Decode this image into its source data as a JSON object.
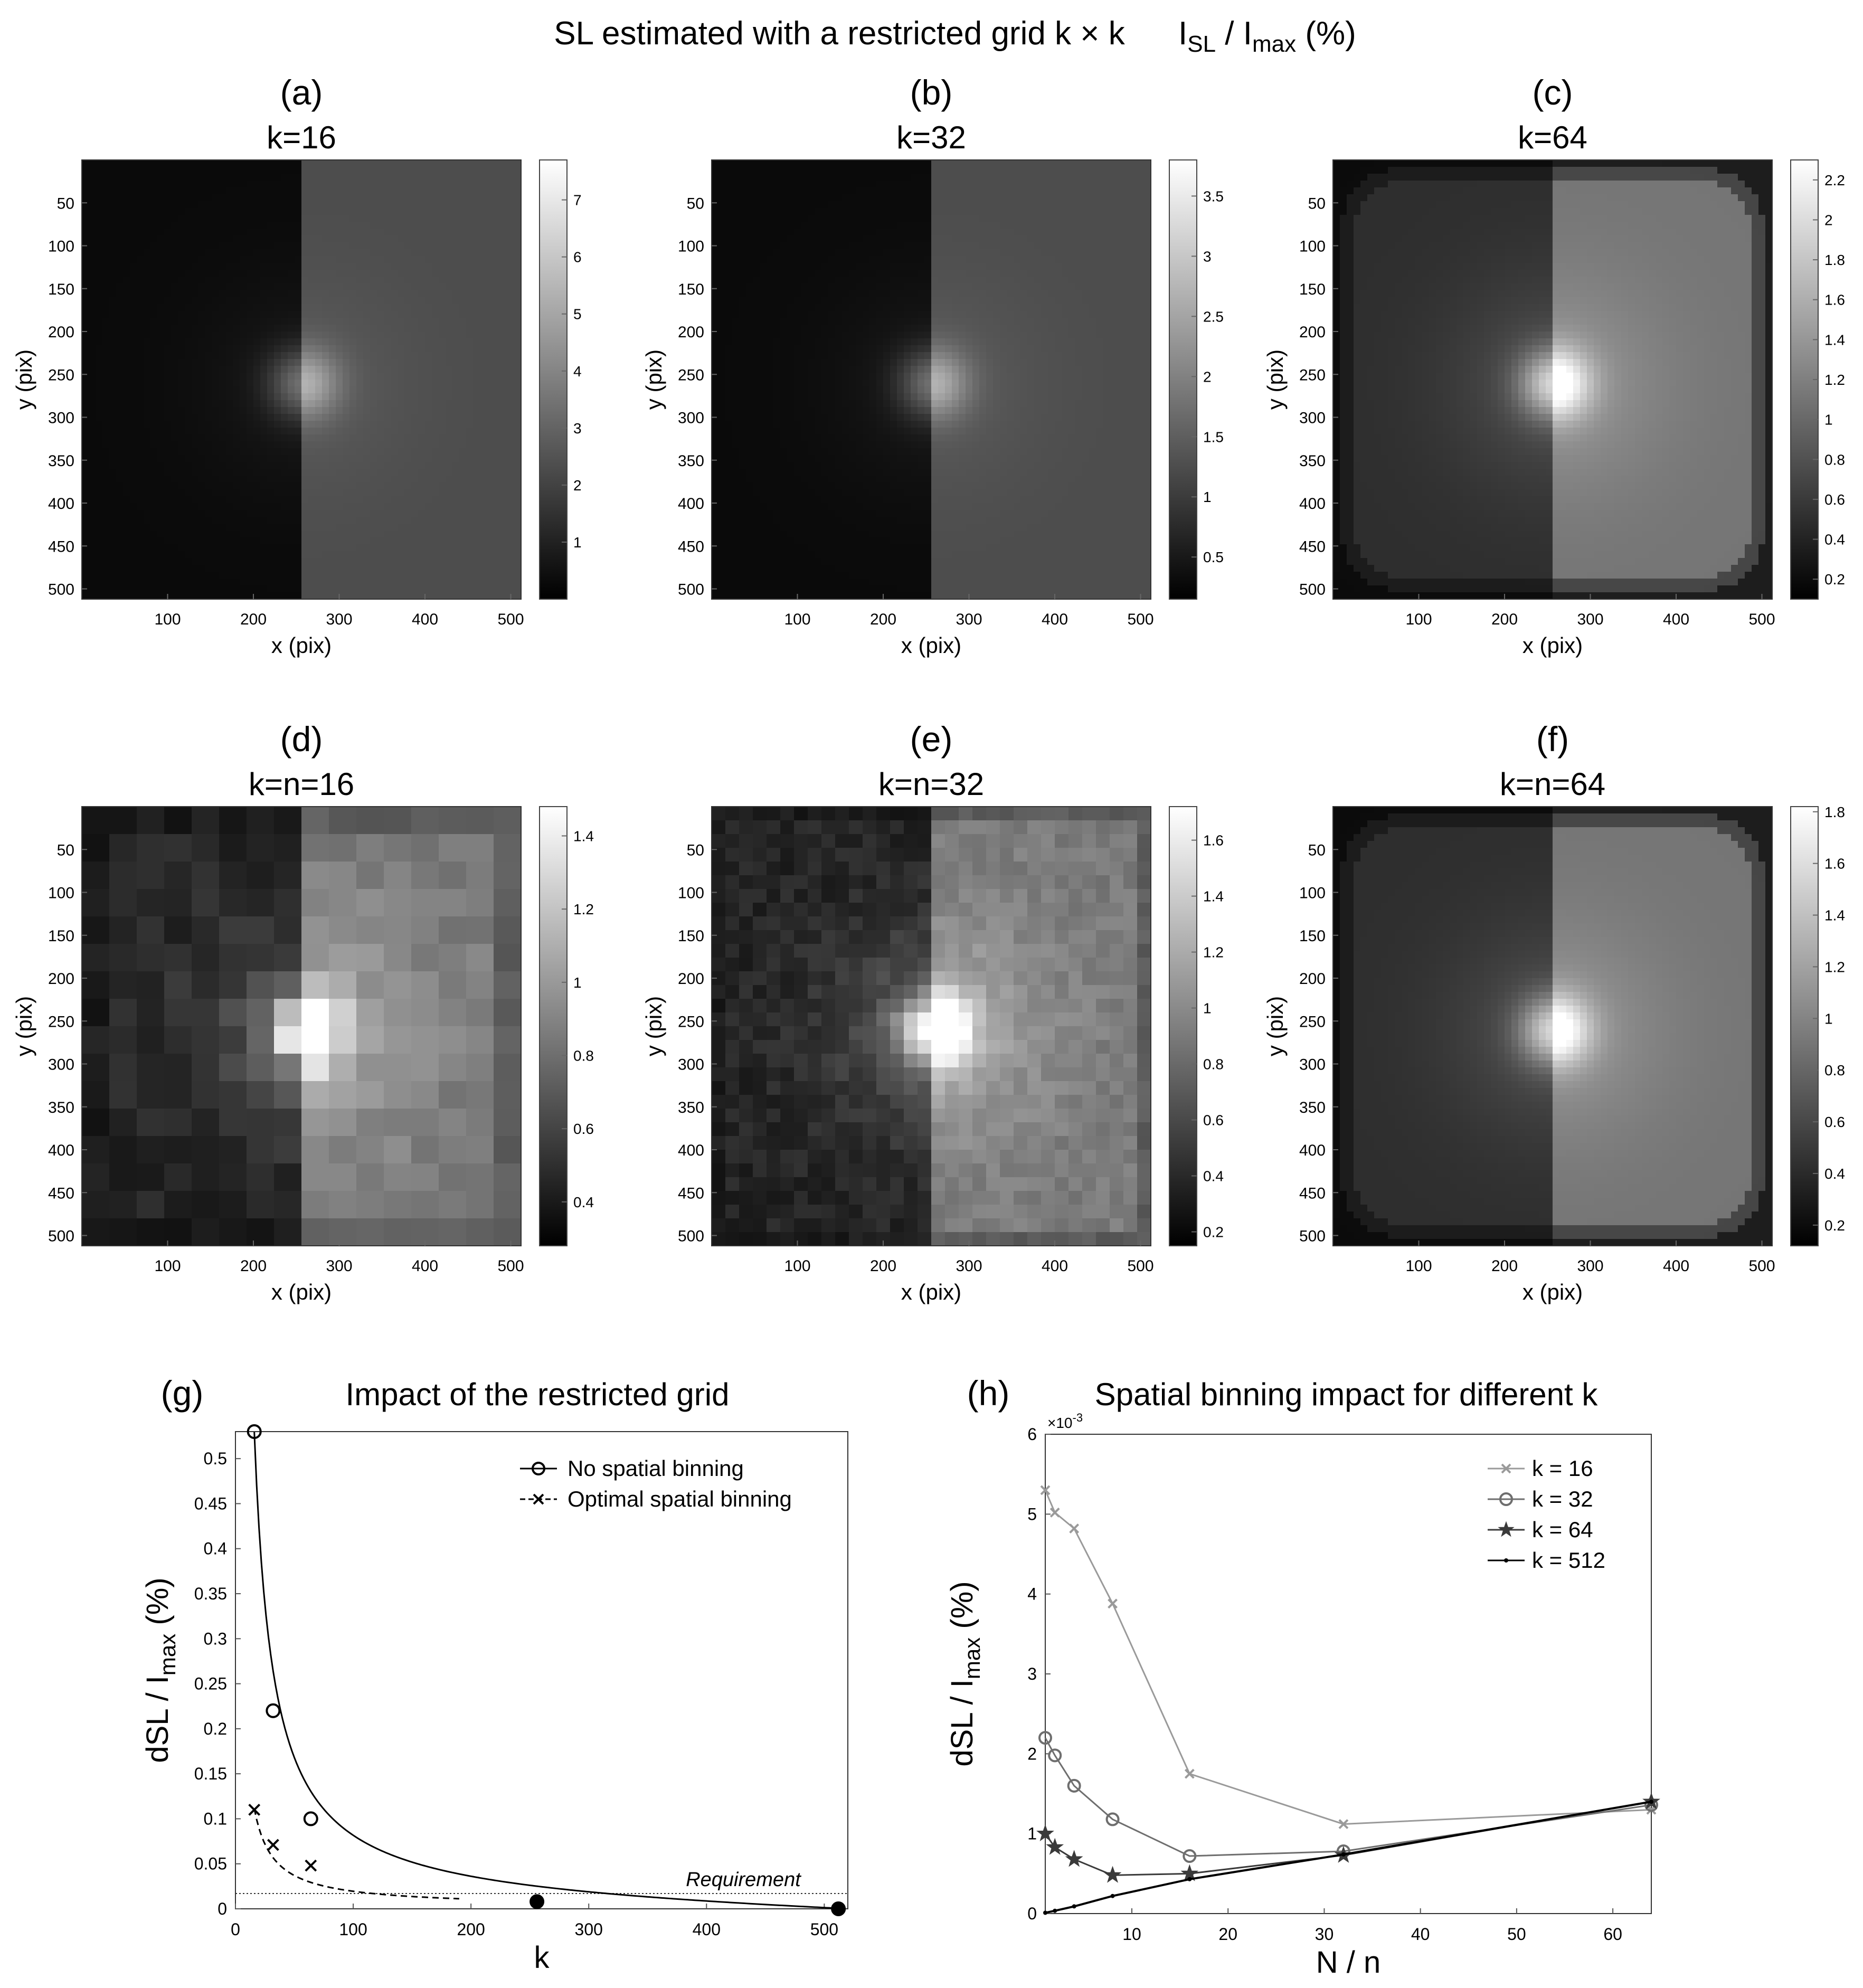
{
  "title": {
    "left": "SL estimated with a restricted grid k × k",
    "right_main": "I",
    "right_sub1": "SL",
    "right_mid": " / I",
    "right_sub2": "max",
    "right_end": " (%)"
  },
  "colors": {
    "line_main": "#000000",
    "k16": "#9a9a9a",
    "k32": "#6e6e6e",
    "k64": "#3a3a3a",
    "k512": "#000000"
  },
  "chart_data": [
    {
      "panel": "(a)",
      "type": "heatmap",
      "title": "k=16",
      "xlabel": "x (pix)",
      "ylabel": "y (pix)",
      "xticks": [
        100,
        200,
        300,
        400,
        500
      ],
      "yticks": [
        50,
        100,
        150,
        200,
        250,
        300,
        350,
        400,
        450,
        500
      ],
      "colorbar_ticks": [
        1,
        2,
        3,
        4,
        5,
        6,
        7
      ],
      "colorbar_range": [
        0,
        7.7
      ],
      "grid_cells": 64,
      "pattern": "spots",
      "hot_spot": [
        260,
        260
      ]
    },
    {
      "panel": "(b)",
      "type": "heatmap",
      "title": "k=32",
      "xlabel": "x (pix)",
      "ylabel": "y (pix)",
      "xticks": [
        100,
        200,
        300,
        400,
        500
      ],
      "yticks": [
        50,
        100,
        150,
        200,
        250,
        300,
        350,
        400,
        450,
        500
      ],
      "colorbar_ticks": [
        0.5,
        1,
        1.5,
        2,
        2.5,
        3,
        3.5
      ],
      "colorbar_range": [
        0.15,
        3.8
      ],
      "grid_cells": 64,
      "pattern": "spots",
      "hot_spot": [
        260,
        260
      ]
    },
    {
      "panel": "(c)",
      "type": "heatmap",
      "title": "k=64",
      "xlabel": "x (pix)",
      "ylabel": "y (pix)",
      "xticks": [
        100,
        200,
        300,
        400,
        500
      ],
      "yticks": [
        50,
        100,
        150,
        200,
        250,
        300,
        350,
        400,
        450,
        500
      ],
      "colorbar_ticks": [
        0.2,
        0.4,
        0.6,
        0.8,
        1,
        1.2,
        1.4,
        1.6,
        1.8,
        2,
        2.2
      ],
      "colorbar_range": [
        0.1,
        2.3
      ],
      "grid_cells": 64,
      "pattern": "smooth",
      "hot_spot": [
        260,
        260
      ]
    },
    {
      "panel": "(d)",
      "type": "heatmap",
      "title": "k=n=16",
      "xlabel": "x (pix)",
      "ylabel": "y (pix)",
      "xticks": [
        100,
        200,
        300,
        400,
        500
      ],
      "yticks": [
        50,
        100,
        150,
        200,
        250,
        300,
        350,
        400,
        450,
        500
      ],
      "colorbar_ticks": [
        0.4,
        0.6,
        0.8,
        1,
        1.2,
        1.4
      ],
      "colorbar_range": [
        0.28,
        1.48
      ],
      "grid_cells": 16,
      "pattern": "blocks",
      "hot_spot": [
        260,
        260
      ]
    },
    {
      "panel": "(e)",
      "type": "heatmap",
      "title": "k=n=32",
      "xlabel": "x (pix)",
      "ylabel": "y (pix)",
      "xticks": [
        100,
        200,
        300,
        400,
        500
      ],
      "yticks": [
        50,
        100,
        150,
        200,
        250,
        300,
        350,
        400,
        450,
        500
      ],
      "colorbar_ticks": [
        0.2,
        0.4,
        0.6,
        0.8,
        1,
        1.2,
        1.4,
        1.6
      ],
      "colorbar_range": [
        0.15,
        1.72
      ],
      "grid_cells": 32,
      "pattern": "blocks",
      "hot_spot": [
        260,
        260
      ]
    },
    {
      "panel": "(f)",
      "type": "heatmap",
      "title": "k=n=64",
      "xlabel": "x (pix)",
      "ylabel": "y (pix)",
      "xticks": [
        100,
        200,
        300,
        400,
        500
      ],
      "yticks": [
        50,
        100,
        150,
        200,
        250,
        300,
        350,
        400,
        450,
        500
      ],
      "colorbar_ticks": [
        0.2,
        0.4,
        0.6,
        0.8,
        1,
        1.2,
        1.4,
        1.6,
        1.8
      ],
      "colorbar_range": [
        0.12,
        1.82
      ],
      "grid_cells": 64,
      "pattern": "smooth",
      "hot_spot": [
        260,
        260
      ]
    },
    {
      "panel": "(g)",
      "type": "line",
      "title": "Impact of the restricted grid",
      "xlabel": "k",
      "ylabel_main": "dSL / I",
      "ylabel_sub": "max",
      "ylabel_end": " (%)",
      "xlim": [
        0,
        520
      ],
      "ylim": [
        0,
        0.53
      ],
      "xticks": [
        0,
        100,
        200,
        300,
        400,
        500
      ],
      "yticks": [
        0,
        0.05,
        0.1,
        0.15,
        0.2,
        0.25,
        0.3,
        0.35,
        0.4,
        0.45,
        0.5
      ],
      "series": [
        {
          "name": "No spatial binning",
          "marker": "o",
          "style": "solid",
          "x": [
            16,
            32,
            64,
            256,
            512
          ],
          "y": [
            0.53,
            0.22,
            0.1,
            0.008,
            0.0
          ],
          "curve_model": "power",
          "filled_points": [
            256,
            512
          ]
        },
        {
          "name": "Optimal spatial binning",
          "marker": "x",
          "style": "dashed",
          "x": [
            16,
            32,
            64
          ],
          "y": [
            0.11,
            0.071,
            0.048
          ]
        }
      ],
      "hline": {
        "y": 0.017,
        "label": "Requirement"
      }
    },
    {
      "panel": "(h)",
      "type": "line",
      "title": "Spatial binning impact for different k",
      "xlabel": "N / n",
      "ylabel_main": "dSL / I",
      "ylabel_sub": "max",
      "ylabel_end": " (%)",
      "y_multiplier": "×10",
      "y_multiplier_exp": "-3",
      "xlim": [
        1,
        64
      ],
      "ylim": [
        0,
        6
      ],
      "xticks": [
        10,
        20,
        30,
        40,
        50,
        60
      ],
      "yticks": [
        0,
        1,
        2,
        3,
        4,
        5,
        6
      ],
      "series": [
        {
          "name": "k = 16",
          "marker": "x",
          "x": [
            1,
            2,
            4,
            8,
            16,
            32,
            64
          ],
          "y": [
            5.3,
            5.02,
            4.82,
            3.88,
            1.75,
            1.12,
            1.3
          ]
        },
        {
          "name": "k = 32",
          "marker": "o",
          "x": [
            1,
            2,
            4,
            8,
            16,
            32,
            64
          ],
          "y": [
            2.2,
            1.98,
            1.6,
            1.18,
            0.72,
            0.78,
            1.36
          ]
        },
        {
          "name": "k = 64",
          "marker": "*",
          "x": [
            1,
            2,
            4,
            8,
            16,
            32,
            64
          ],
          "y": [
            1.0,
            0.83,
            0.68,
            0.48,
            0.5,
            0.73,
            1.4
          ]
        },
        {
          "name": "k = 512",
          "marker": ".",
          "x": [
            1,
            2,
            4,
            8,
            16,
            32,
            64
          ],
          "y": [
            0.01,
            0.035,
            0.09,
            0.22,
            0.43,
            0.74,
            1.4
          ]
        }
      ]
    }
  ]
}
